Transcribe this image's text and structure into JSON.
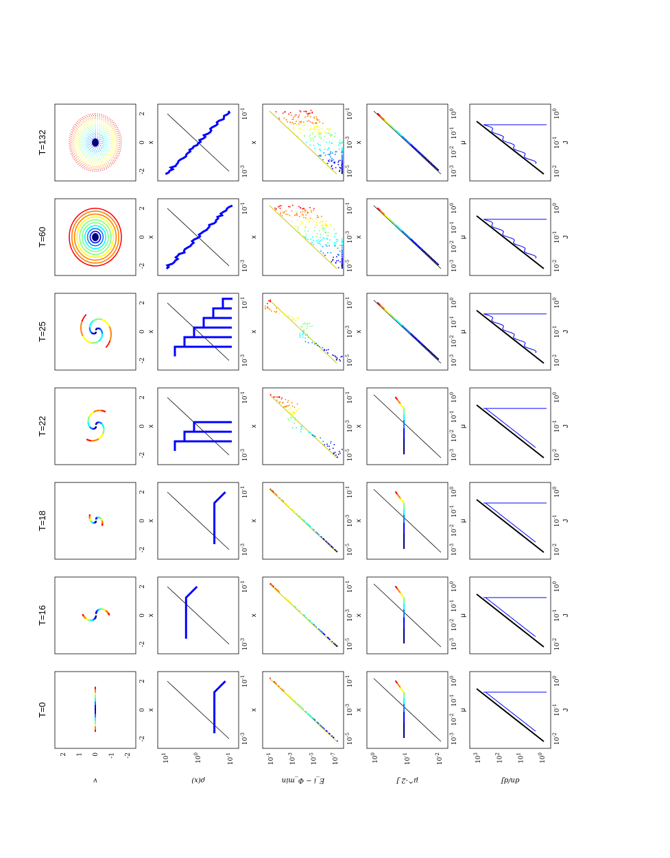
{
  "figure": {
    "orientation": "rotated 90 degrees counter-clockwise",
    "columns": [
      "T=0",
      "T=16",
      "T=18",
      "T=22",
      "T=25",
      "T=60",
      "T=132"
    ],
    "rows": [
      "phase-space",
      "density",
      "energy",
      "angular-momentum",
      "distribution"
    ],
    "colormap": [
      "#00007f",
      "#0000ff",
      "#0080ff",
      "#00ffff",
      "#80ff80",
      "#ffff00",
      "#ff8000",
      "#ff0000"
    ]
  },
  "chart_data": [
    {
      "type": "scatter",
      "row": "phase-space",
      "ylabel": "v",
      "xlabel": "x",
      "xticks": [
        "-2",
        "0",
        "2"
      ],
      "yticks": [
        "2",
        "1",
        "0",
        "-1",
        "-2"
      ],
      "xlim": [
        -3.5,
        3.5
      ],
      "ylim": [
        -2.5,
        2.5
      ]
    },
    {
      "type": "line",
      "row": "density",
      "ylabel": "ρ(x)",
      "xlabel": "x",
      "log_y": true,
      "yticks": [
        "10^1",
        "10^0",
        "10^-1"
      ],
      "xticks": [
        "10^-3",
        "10^-1"
      ],
      "series": [
        {
          "panel": "T=0",
          "x": [
            0.8,
            1,
            1.5,
            2,
            2.5,
            3
          ],
          "y": [
            0.35,
            0.35,
            0.35,
            0.35,
            0.35,
            0.35
          ]
        },
        {
          "panel": "T=132",
          "x": [
            -2.5,
            -1.5,
            -0.5,
            0,
            0.5,
            1.5,
            2.5,
            3
          ],
          "y": [
            25,
            10,
            4,
            2.5,
            1.5,
            0.5,
            0.15,
            0.1
          ]
        }
      ]
    },
    {
      "type": "scatter",
      "row": "energy",
      "ylabel": "E_i − Φ_min",
      "xlabel": "x",
      "log_y": true,
      "yticks": [
        "10^-1",
        "10^-3",
        "10^-5",
        "10^-7"
      ],
      "xticks": [
        "10^-5",
        "10^-3",
        "10^-1"
      ]
    },
    {
      "type": "scatter",
      "row": "angular-momentum",
      "ylabel": "μ^-2 J",
      "xlabel": "μ",
      "log_x": true,
      "log_y": true,
      "yticks": [
        "10^0",
        "10^-1",
        "10^-2"
      ],
      "xticks": [
        "10^-3",
        "10^-2",
        "10^-1",
        "10^0"
      ]
    },
    {
      "type": "line",
      "row": "distribution",
      "ylabel": "dn/dJ",
      "xlabel": "J",
      "log_x": true,
      "log_y": true,
      "yticks": [
        "10^3",
        "10^2",
        "10^1",
        "10^0"
      ],
      "xticks": [
        "10^-2",
        "10^-1",
        "10^0"
      ]
    }
  ]
}
